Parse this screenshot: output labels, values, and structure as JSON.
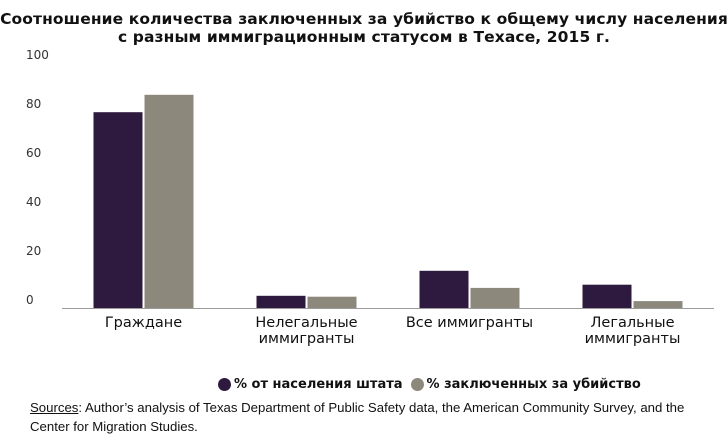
{
  "chart_data": {
    "type": "bar",
    "title_lines": [
      "Соотношение количества заключенных за убийство к общему числу населения",
      "с разным иммиграционным статусом в Техасе, 2015 г."
    ],
    "categories": [
      [
        "Граждане"
      ],
      [
        "Нелегальные",
        "иммигранты"
      ],
      [
        "Все иммигранты"
      ],
      [
        "Легальные",
        "иммигранты"
      ]
    ],
    "series": [
      {
        "name": "% от населения штата",
        "color": "#2d1a3e",
        "values": [
          79.9,
          5.0,
          15.2,
          9.5
        ]
      },
      {
        "name": "% заключенных за убийство",
        "color": "#8c887c",
        "values": [
          87.0,
          4.6,
          8.2,
          2.8
        ]
      }
    ],
    "yticks": [
      "0",
      "20",
      "40",
      "60",
      "80",
      "100"
    ],
    "ylim": [
      0,
      100
    ],
    "grid": false,
    "legend_position": "bottom"
  },
  "sources": {
    "label": "Sources",
    "text": ": Author’s analysis of Texas Department of Public Safety data, the American Community Survey, and the Center for Migration Studies."
  }
}
